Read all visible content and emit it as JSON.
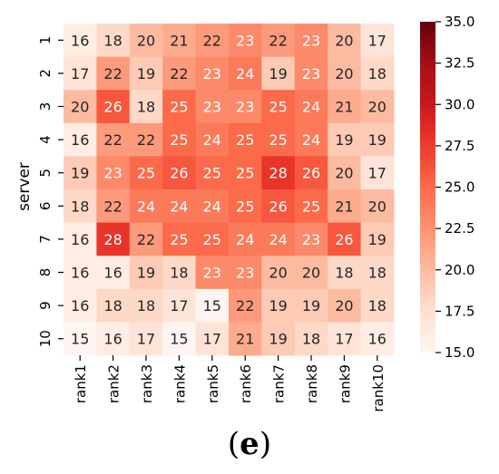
{
  "chart_data": {
    "type": "heatmap",
    "title": "",
    "xlabel": "",
    "ylabel": "server",
    "x_categories": [
      "rank1",
      "rank2",
      "rank3",
      "rank4",
      "rank5",
      "rank6",
      "rank7",
      "rank8",
      "rank9",
      "rank10"
    ],
    "y_categories": [
      "1",
      "2",
      "3",
      "4",
      "5",
      "6",
      "7",
      "8",
      "9",
      "10"
    ],
    "values": [
      [
        16,
        18,
        20,
        21,
        22,
        23,
        22,
        23,
        20,
        17
      ],
      [
        17,
        22,
        19,
        22,
        23,
        24,
        19,
        23,
        20,
        18
      ],
      [
        20,
        26,
        18,
        25,
        23,
        23,
        25,
        24,
        21,
        20
      ],
      [
        16,
        22,
        22,
        25,
        24,
        25,
        25,
        24,
        19,
        19
      ],
      [
        19,
        23,
        25,
        26,
        25,
        25,
        28,
        26,
        20,
        17
      ],
      [
        18,
        22,
        24,
        24,
        24,
        25,
        26,
        25,
        21,
        20
      ],
      [
        16,
        28,
        22,
        25,
        25,
        24,
        24,
        23,
        26,
        19
      ],
      [
        16,
        16,
        19,
        18,
        23,
        23,
        20,
        20,
        18,
        18
      ],
      [
        16,
        18,
        18,
        17,
        15,
        22,
        19,
        19,
        20,
        18
      ],
      [
        15,
        16,
        17,
        15,
        17,
        21,
        19,
        18,
        17,
        16
      ]
    ],
    "colorbar": {
      "min": 15.0,
      "max": 35.0,
      "ticks": [
        "15.0",
        "17.5",
        "20.0",
        "22.5",
        "25.0",
        "27.5",
        "30.0",
        "32.5",
        "35.0"
      ],
      "colormap": "Reds"
    },
    "annotations": true
  },
  "caption": {
    "open_paren": "(",
    "letter": "e",
    "close_paren": ")"
  }
}
